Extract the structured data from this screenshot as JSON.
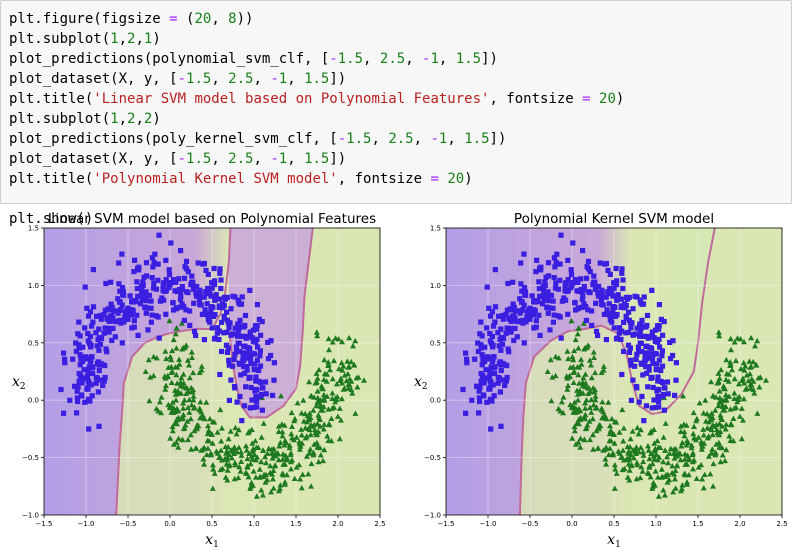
{
  "code_cell": {
    "lines": [
      [
        [
          "plain",
          "plt.figure(figsize "
        ],
        [
          "op",
          "="
        ],
        [
          "plain",
          " ("
        ],
        [
          "num",
          "20"
        ],
        [
          "plain",
          ", "
        ],
        [
          "num",
          "8"
        ],
        [
          "plain",
          "))"
        ]
      ],
      [
        [
          "plain",
          "plt.subplot("
        ],
        [
          "num",
          "1"
        ],
        [
          "plain",
          ","
        ],
        [
          "num",
          "2"
        ],
        [
          "plain",
          ","
        ],
        [
          "num",
          "1"
        ],
        [
          "plain",
          ")"
        ]
      ],
      [
        [
          "plain",
          "plot_predictions(polynomial_svm_clf, ["
        ],
        [
          "op",
          "-"
        ],
        [
          "num",
          "1.5"
        ],
        [
          "plain",
          ", "
        ],
        [
          "num",
          "2.5"
        ],
        [
          "plain",
          ", "
        ],
        [
          "op",
          "-"
        ],
        [
          "num",
          "1"
        ],
        [
          "plain",
          ", "
        ],
        [
          "num",
          "1.5"
        ],
        [
          "plain",
          "])"
        ]
      ],
      [
        [
          "plain",
          "plot_dataset(X, y, ["
        ],
        [
          "op",
          "-"
        ],
        [
          "num",
          "1.5"
        ],
        [
          "plain",
          ", "
        ],
        [
          "num",
          "2.5"
        ],
        [
          "plain",
          ", "
        ],
        [
          "op",
          "-"
        ],
        [
          "num",
          "1"
        ],
        [
          "plain",
          ", "
        ],
        [
          "num",
          "1.5"
        ],
        [
          "plain",
          "])"
        ]
      ],
      [
        [
          "plain",
          "plt.title("
        ],
        [
          "str",
          "'Linear SVM model based on Polynomial Features'"
        ],
        [
          "plain",
          ", fontsize "
        ],
        [
          "op",
          "="
        ],
        [
          "plain",
          " "
        ],
        [
          "num",
          "20"
        ],
        [
          "plain",
          ")"
        ]
      ],
      [
        [
          "plain",
          "plt.subplot("
        ],
        [
          "num",
          "1"
        ],
        [
          "plain",
          ","
        ],
        [
          "num",
          "2"
        ],
        [
          "plain",
          ","
        ],
        [
          "num",
          "2"
        ],
        [
          "plain",
          ")"
        ]
      ],
      [
        [
          "plain",
          "plot_predictions(poly_kernel_svm_clf, ["
        ],
        [
          "op",
          "-"
        ],
        [
          "num",
          "1.5"
        ],
        [
          "plain",
          ", "
        ],
        [
          "num",
          "2.5"
        ],
        [
          "plain",
          ", "
        ],
        [
          "op",
          "-"
        ],
        [
          "num",
          "1"
        ],
        [
          "plain",
          ", "
        ],
        [
          "num",
          "1.5"
        ],
        [
          "plain",
          "])"
        ]
      ],
      [
        [
          "plain",
          "plot_dataset(X, y, ["
        ],
        [
          "op",
          "-"
        ],
        [
          "num",
          "1.5"
        ],
        [
          "plain",
          ", "
        ],
        [
          "num",
          "2.5"
        ],
        [
          "plain",
          ", "
        ],
        [
          "op",
          "-"
        ],
        [
          "num",
          "1"
        ],
        [
          "plain",
          ", "
        ],
        [
          "num",
          "1.5"
        ],
        [
          "plain",
          "])"
        ]
      ],
      [
        [
          "plain",
          "plt.title("
        ],
        [
          "str",
          "'Polynomial Kernel SVM model'"
        ],
        [
          "plain",
          ", fontsize "
        ],
        [
          "op",
          "="
        ],
        [
          "plain",
          " "
        ],
        [
          "num",
          "20"
        ],
        [
          "plain",
          ")"
        ]
      ],
      [],
      [
        [
          "plain",
          "plt.show()"
        ]
      ]
    ]
  },
  "colors": {
    "cell_bg": "#f7f7f7",
    "number": "#1a7f1a",
    "string": "#ba2121",
    "operator": "#aa22ff",
    "class_0_marker": "#3a1fe0",
    "class_1_marker": "#1f7a1f",
    "region_class_0": "#c9a8d9",
    "region_class_1": "#dbe6b4",
    "boundary": "#c06a9a"
  },
  "chart_data": [
    {
      "type": "scatter",
      "title": "Linear SVM model based on Polynomial Features",
      "xlabel": "x_1",
      "ylabel": "x_2",
      "xlim": [
        -1.5,
        2.5
      ],
      "ylim": [
        -1.0,
        1.5
      ],
      "xticks": [
        "−1.5",
        "−1.0",
        "−0.5",
        "0.0",
        "0.5",
        "1.0",
        "1.5",
        "2.0",
        "2.5"
      ],
      "yticks": [
        "−1.0",
        "−0.5",
        "0.0",
        "0.5",
        "1.0",
        "1.5"
      ],
      "grid": true,
      "background": "decision regions (contour fill)",
      "series": [
        {
          "marker": "square",
          "color": "#3a1fe0",
          "description_points": "upper moon, class 0"
        },
        {
          "marker": "triangle",
          "color": "#1f7a1f",
          "description_points": "lower moon, class 1"
        }
      ],
      "boundary": [
        [
          0.72,
          1.5
        ],
        [
          0.7,
          1.2
        ],
        [
          0.66,
          0.95
        ],
        [
          0.6,
          0.75
        ],
        [
          0.5,
          0.62
        ],
        [
          0.3,
          0.62
        ],
        [
          0.12,
          0.6
        ],
        [
          -0.02,
          0.58
        ],
        [
          -0.15,
          0.55
        ],
        [
          -0.3,
          0.5
        ],
        [
          -0.45,
          0.38
        ],
        [
          -0.55,
          0.15
        ],
        [
          -0.57,
          -0.1
        ],
        [
          -0.6,
          -0.4
        ],
        [
          -0.62,
          -0.7
        ],
        [
          -0.64,
          -1.0
        ]
      ],
      "boundary_right": [
        [
          1.7,
          1.5
        ],
        [
          1.65,
          1.2
        ],
        [
          1.6,
          0.9
        ],
        [
          1.58,
          0.6
        ],
        [
          1.55,
          0.3
        ],
        [
          1.5,
          0.1
        ],
        [
          1.35,
          -0.05
        ],
        [
          1.15,
          -0.15
        ],
        [
          0.95,
          -0.15
        ],
        [
          0.85,
          -0.05
        ],
        [
          0.8,
          0.1
        ],
        [
          0.75,
          0.3
        ],
        [
          0.72,
          0.5
        ],
        [
          0.7,
          0.65
        ]
      ]
    },
    {
      "type": "scatter",
      "title": "Polynomial Kernel SVM model",
      "xlabel": "x_1",
      "ylabel": "x_2",
      "xlim": [
        -1.5,
        2.5
      ],
      "ylim": [
        -1.0,
        1.5
      ],
      "xticks": [
        "−1.5",
        "−1.0",
        "−0.5",
        "0.0",
        "0.5",
        "1.0",
        "1.5",
        "2.0",
        "2.5"
      ],
      "yticks": [
        "−1.0",
        "−0.5",
        "0.0",
        "0.5",
        "1.0",
        "1.5"
      ],
      "grid": true,
      "background": "decision regions (contour fill)",
      "series": [
        {
          "marker": "square",
          "color": "#3a1fe0",
          "description_points": "upper moon, class 0"
        },
        {
          "marker": "triangle",
          "color": "#1f7a1f",
          "description_points": "lower moon, class 1"
        }
      ],
      "boundary": [
        [
          1.7,
          1.5
        ],
        [
          1.62,
          1.2
        ],
        [
          1.55,
          0.85
        ],
        [
          1.5,
          0.5
        ],
        [
          1.45,
          0.25
        ],
        [
          1.3,
          0.05
        ],
        [
          1.1,
          -0.1
        ],
        [
          0.95,
          -0.12
        ],
        [
          0.8,
          -0.05
        ],
        [
          0.72,
          0.15
        ],
        [
          0.65,
          0.4
        ],
        [
          0.55,
          0.58
        ],
        [
          0.35,
          0.65
        ],
        [
          0.15,
          0.62
        ],
        [
          -0.05,
          0.6
        ],
        [
          -0.25,
          0.52
        ],
        [
          -0.45,
          0.38
        ],
        [
          -0.55,
          0.15
        ],
        [
          -0.58,
          -0.15
        ],
        [
          -0.6,
          -0.5
        ],
        [
          -0.62,
          -1.0
        ]
      ]
    }
  ]
}
